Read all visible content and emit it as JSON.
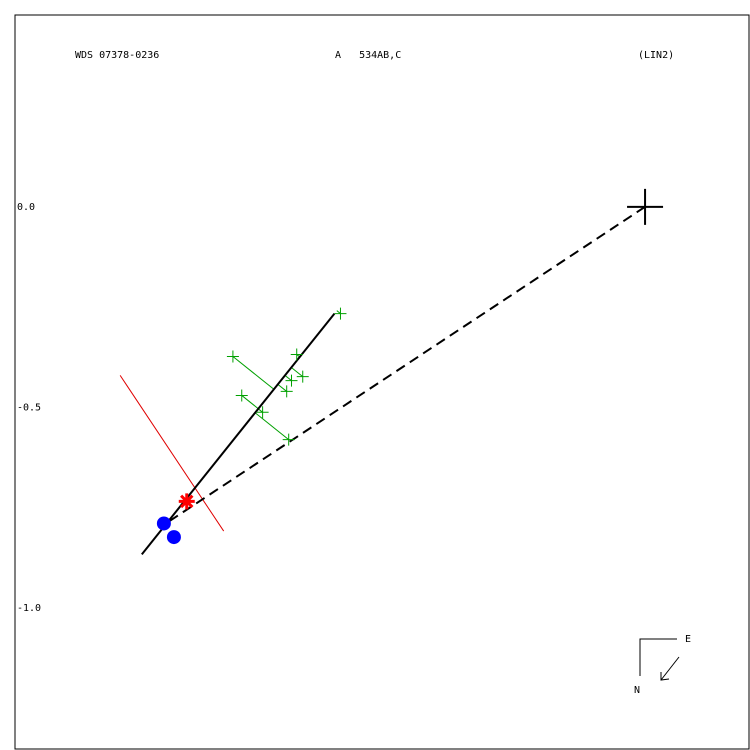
{
  "chart_data": {
    "type": "orbit",
    "title": "WDS 07378-0236",
    "subtitle": "A   534AB,C",
    "annotation": "(LIN2)",
    "xlim": [
      -1.57,
      0.259
    ],
    "ylim": [
      -1.351,
      0.478
    ],
    "yticks": [
      {
        "value": 0,
        "label": "0.0"
      },
      {
        "value": -0.5,
        "label": "-0.5"
      },
      {
        "value": -1,
        "label": "-1.0"
      }
    ],
    "primary": {
      "x": 0,
      "y": 0,
      "color": "#000000"
    },
    "measures": {
      "color": "#00a000",
      "x": [
        -0.759,
        -1.027,
        -0.868,
        -1.005,
        -0.853,
        -0.881,
        -0.893,
        -0.953,
        -0.888
      ],
      "y": [
        -0.266,
        -0.373,
        -0.368,
        -0.47,
        -0.423,
        -0.433,
        -0.46,
        -0.512,
        -0.58
      ]
    },
    "fit_line": {
      "color": "#000000",
      "x": [
        -1.254,
        -0.774
      ],
      "y": [
        -0.866,
        -0.266
      ]
    },
    "dashed_line": {
      "color": "#000000",
      "x": [
        0,
        -1.197
      ],
      "y": [
        0,
        -0.791
      ]
    },
    "perpendicular": {
      "color": "#e00000",
      "x": [
        -1.308,
        -1.05
      ],
      "y": [
        -0.42,
        -0.808
      ]
    },
    "current": {
      "color": "#ff0000",
      "x": -1.142,
      "y": -0.734
    },
    "companions": {
      "color": "#0000ff",
      "x": [
        -1.199,
        -1.174
      ],
      "y": [
        -0.789,
        -0.823
      ]
    },
    "compass": {
      "east": "E",
      "north": "N"
    }
  }
}
